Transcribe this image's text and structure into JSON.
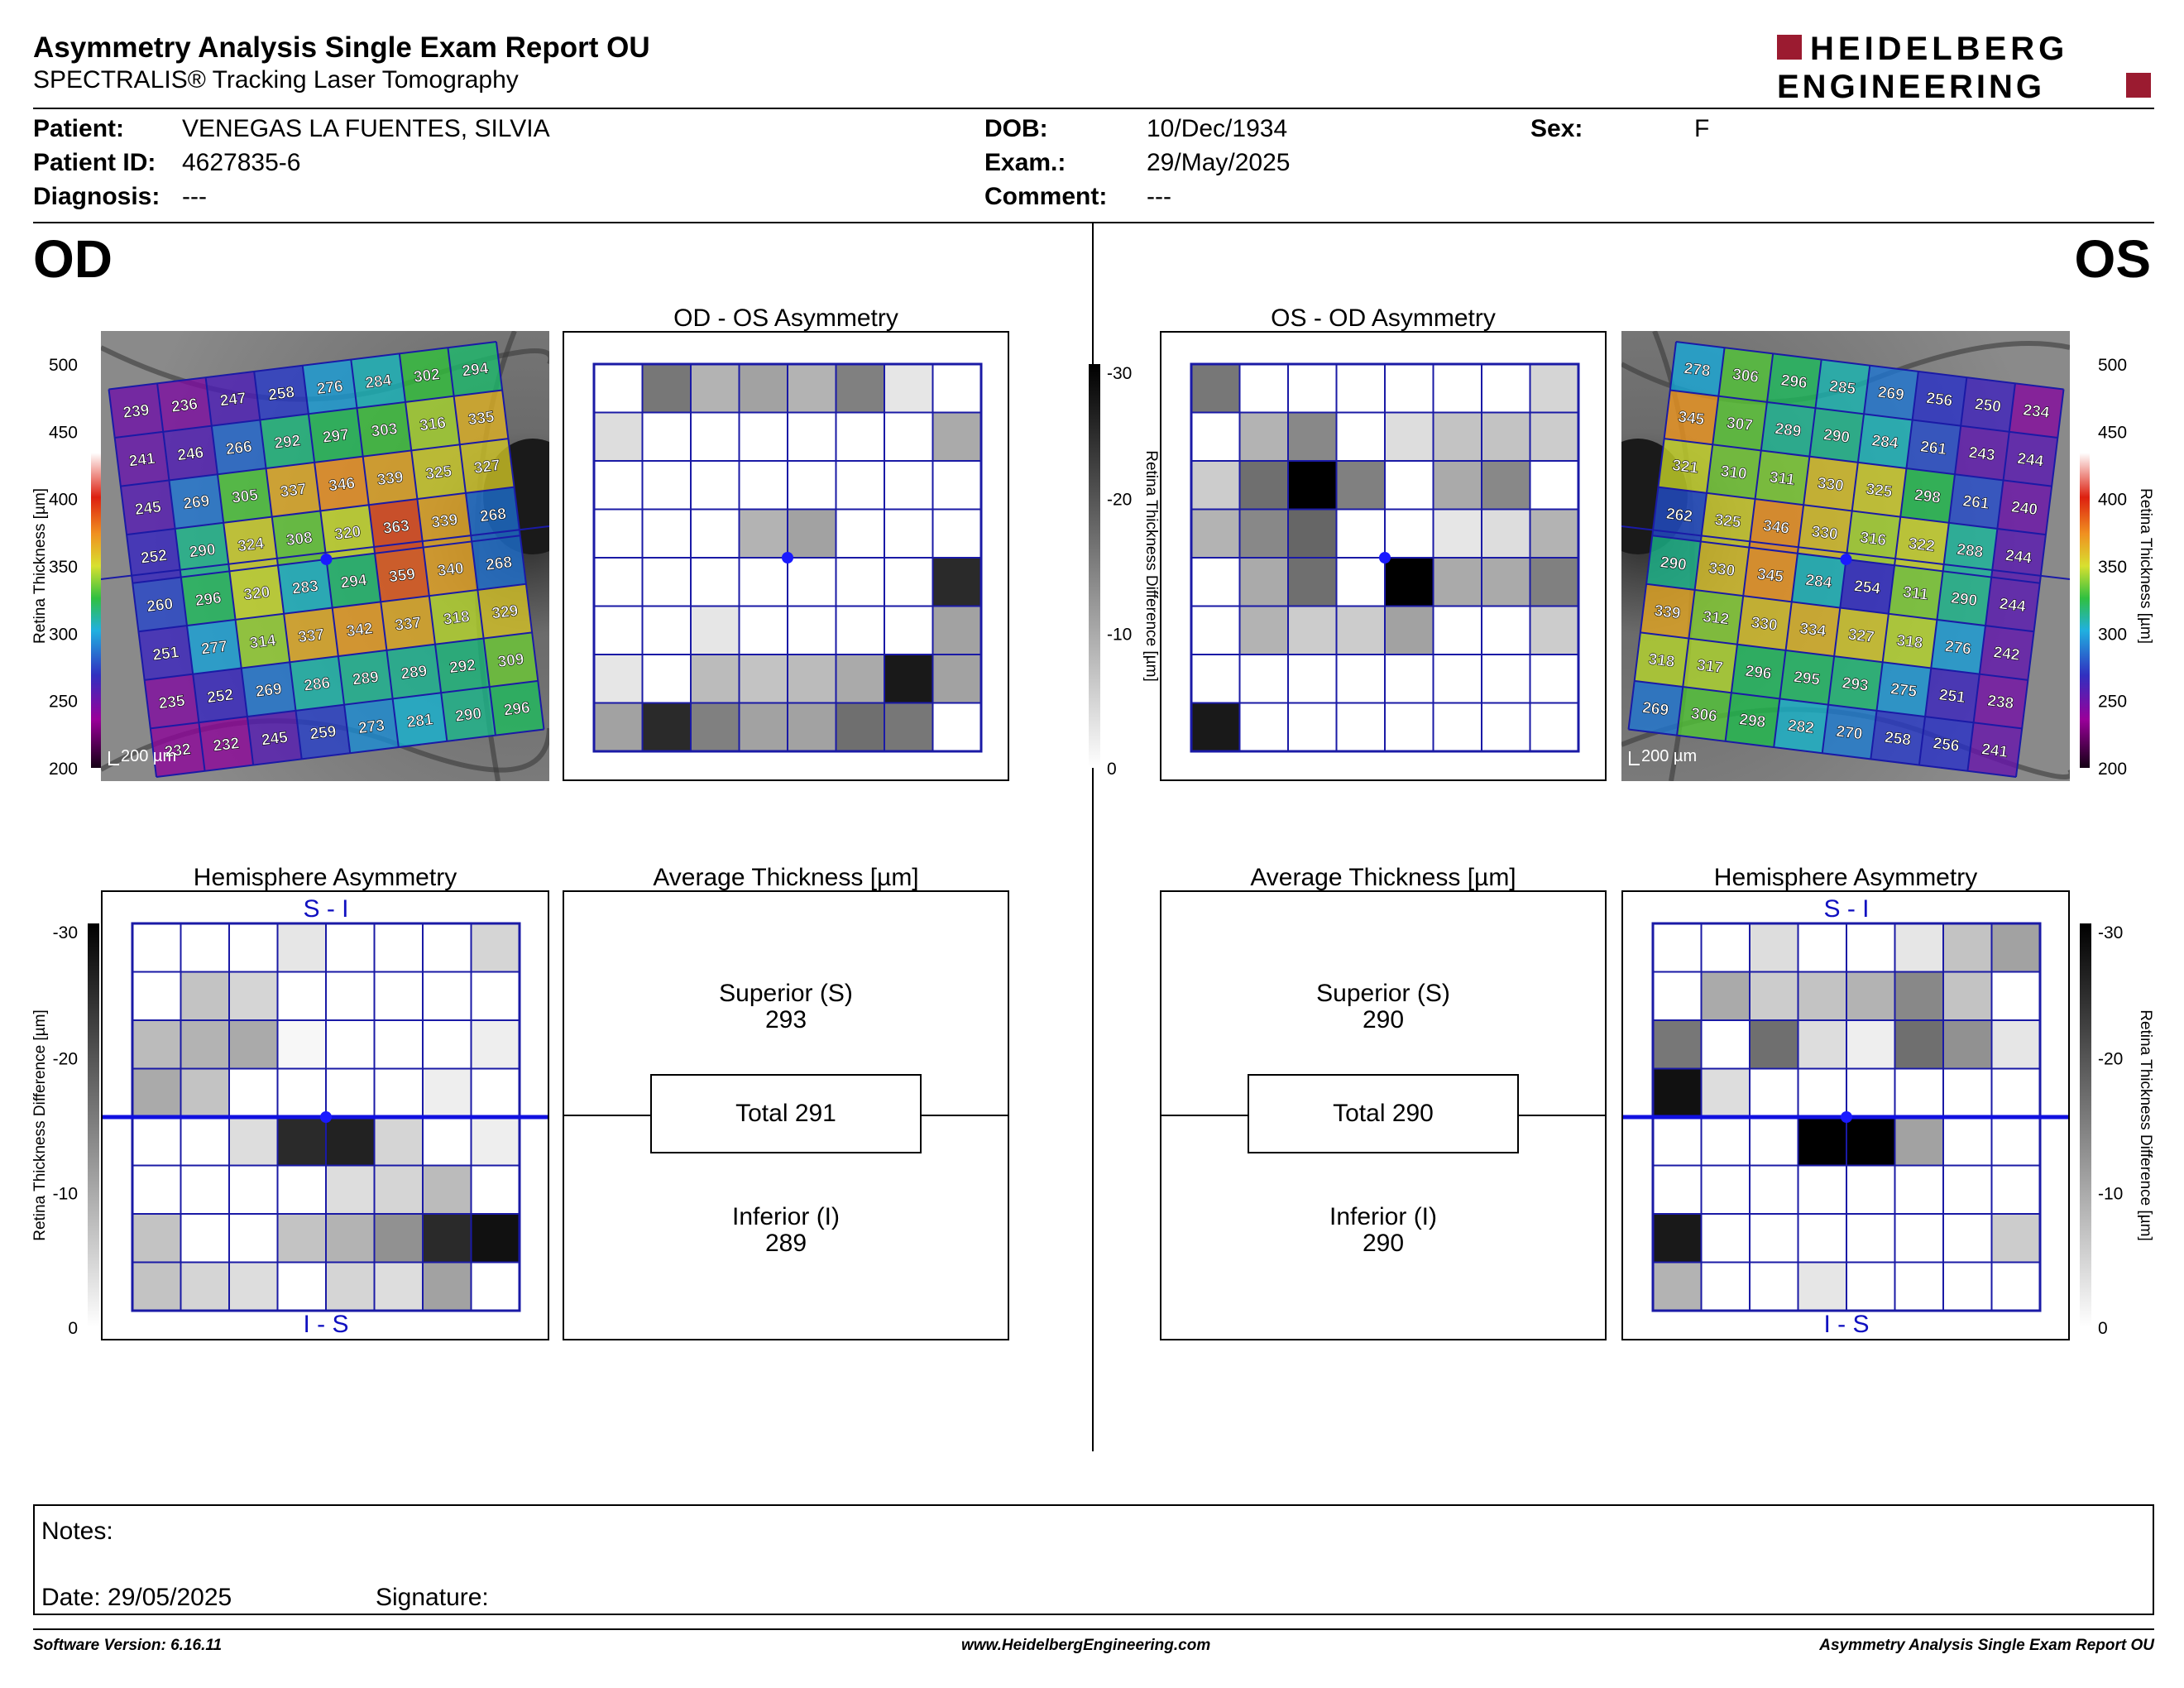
{
  "header": {
    "title": "Asymmetry Analysis Single Exam Report OU",
    "subtitle": "SPECTRALIS® Tracking Laser Tomography",
    "logo_line1": "HEIDELBERG",
    "logo_line2": "ENGINEERING",
    "logo_color": "#9b1b30"
  },
  "patient": {
    "patient_label": "Patient:",
    "patient_value": "VENEGAS LA FUENTES, SILVIA",
    "id_label": "Patient ID:",
    "id_value": "4627835-6",
    "diagnosis_label": "Diagnosis:",
    "diagnosis_value": "---",
    "dob_label": "DOB:",
    "dob_value": "10/Dec/1934",
    "exam_label": "Exam.:",
    "exam_value": "29/May/2025",
    "comment_label": "Comment:",
    "comment_value": "---",
    "sex_label": "Sex:",
    "sex_value": "F"
  },
  "eyes": {
    "od": "OD",
    "os": "OS"
  },
  "panels": {
    "od_os_title": "OD - OS Asymmetry",
    "os_od_title": "OS - OD Asymmetry",
    "hemi_title": "Hemisphere Asymmetry",
    "avg_title": "Average Thickness [µm]",
    "si_label": "S - I",
    "is_label": "I - S",
    "scale_label": "200 µm"
  },
  "scales": {
    "thickness_axis": "Retina  Thickness [µm]",
    "thickness_ticks": [
      "500",
      "450",
      "400",
      "350",
      "300",
      "250",
      "200"
    ],
    "diff_axis": "Retina Thickness Difference [µm]",
    "diff_ticks": [
      "-30",
      "-20",
      "-10",
      "0"
    ]
  },
  "thickness_grid": {
    "od": [
      [
        239,
        236,
        247,
        258,
        276,
        284,
        302,
        294
      ],
      [
        241,
        246,
        266,
        292,
        297,
        303,
        316,
        335
      ],
      [
        245,
        269,
        305,
        337,
        346,
        339,
        325,
        327
      ],
      [
        252,
        290,
        324,
        308,
        320,
        363,
        339,
        268
      ],
      [
        260,
        296,
        320,
        283,
        294,
        359,
        340,
        268
      ],
      [
        251,
        277,
        314,
        337,
        342,
        337,
        318,
        329
      ],
      [
        235,
        252,
        269,
        286,
        289,
        289,
        292,
        309
      ],
      [
        232,
        232,
        245,
        259,
        273,
        281,
        290,
        296
      ]
    ],
    "os": [
      [
        278,
        306,
        296,
        285,
        269,
        256,
        250,
        234
      ],
      [
        345,
        307,
        289,
        290,
        284,
        261,
        243,
        244
      ],
      [
        321,
        310,
        311,
        330,
        325,
        298,
        261,
        240
      ],
      [
        262,
        325,
        346,
        330,
        316,
        322,
        288,
        244
      ],
      [
        290,
        330,
        345,
        284,
        254,
        311,
        290,
        244
      ],
      [
        339,
        312,
        330,
        334,
        327,
        318,
        276,
        242
      ],
      [
        318,
        317,
        296,
        295,
        293,
        275,
        251,
        238
      ],
      [
        269,
        306,
        298,
        282,
        270,
        258,
        256,
        241
      ]
    ]
  },
  "asym_grid": {
    "od_os": [
      [
        0,
        16,
        9,
        11,
        9,
        15,
        3,
        0
      ],
      [
        4,
        0,
        0,
        0,
        0,
        0,
        0,
        10
      ],
      [
        0,
        0,
        0,
        0,
        0,
        0,
        0,
        0
      ],
      [
        0,
        0,
        0,
        9,
        11,
        0,
        0,
        0
      ],
      [
        0,
        0,
        0,
        0,
        0,
        0,
        0,
        25
      ],
      [
        0,
        0,
        3,
        0,
        0,
        0,
        0,
        11
      ],
      [
        3,
        0,
        8,
        7,
        8,
        10,
        27,
        11
      ],
      [
        11,
        25,
        15,
        11,
        11,
        17,
        16,
        0
      ]
    ],
    "os_od": [
      [
        16,
        0,
        0,
        0,
        0,
        0,
        0,
        5
      ],
      [
        0,
        9,
        14,
        0,
        4,
        7,
        7,
        6
      ],
      [
        6,
        17,
        30,
        15,
        0,
        10,
        14,
        0
      ],
      [
        9,
        14,
        18,
        0,
        0,
        3,
        4,
        9
      ],
      [
        0,
        10,
        17,
        0,
        30,
        10,
        10,
        15
      ],
      [
        0,
        9,
        6,
        6,
        11,
        0,
        0,
        6
      ],
      [
        0,
        0,
        0,
        0,
        0,
        0,
        0,
        0
      ],
      [
        27,
        0,
        0,
        0,
        0,
        0,
        0,
        0
      ]
    ],
    "od_hemi": [
      [
        0,
        0,
        0,
        3,
        0,
        0,
        0,
        5
      ],
      [
        0,
        7,
        5,
        0,
        0,
        0,
        0,
        0
      ],
      [
        8,
        9,
        10,
        1,
        0,
        0,
        0,
        2
      ],
      [
        10,
        7,
        0,
        0,
        0,
        0,
        2,
        0
      ],
      [
        0,
        0,
        4,
        25,
        26,
        5,
        0,
        2
      ],
      [
        0,
        0,
        0,
        0,
        4,
        5,
        8,
        0
      ],
      [
        7,
        0,
        0,
        7,
        9,
        13,
        25,
        28
      ],
      [
        7,
        5,
        4,
        0,
        5,
        4,
        11,
        0
      ]
    ],
    "os_hemi": [
      [
        0,
        0,
        4,
        0,
        0,
        3,
        7,
        11
      ],
      [
        0,
        10,
        6,
        7,
        9,
        14,
        7,
        0
      ],
      [
        16,
        0,
        17,
        4,
        2,
        17,
        13,
        3
      ],
      [
        28,
        4,
        0,
        0,
        0,
        0,
        0,
        0
      ],
      [
        0,
        0,
        0,
        31,
        31,
        11,
        0,
        0
      ],
      [
        0,
        0,
        0,
        0,
        0,
        0,
        0,
        0
      ],
      [
        27,
        0,
        0,
        0,
        0,
        0,
        0,
        6
      ],
      [
        9,
        0,
        0,
        3,
        0,
        0,
        0,
        0
      ]
    ]
  },
  "average_thickness": {
    "od": {
      "superior_label": "Superior (S)",
      "superior": "293",
      "total": "Total 291",
      "inferior_label": "Inferior (I)",
      "inferior": "289"
    },
    "os": {
      "superior_label": "Superior (S)",
      "superior": "290",
      "total": "Total 290",
      "inferior_label": "Inferior (I)",
      "inferior": "290"
    }
  },
  "notes": {
    "notes_label": "Notes:",
    "date_label": "Date: 29/05/2025",
    "signature_label": "Signature:"
  },
  "footer": {
    "software": "Software Version: 6.16.11",
    "website": "www.HeidelbergEngineering.com",
    "report_name": "Asymmetry Analysis Single Exam Report OU"
  },
  "colors": {
    "grid_line": "#1a1aa6",
    "marker": "#1a1aff",
    "text": "#000000"
  }
}
